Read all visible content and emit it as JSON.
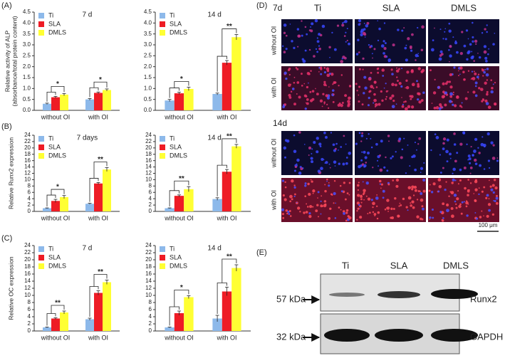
{
  "panel_labels": [
    "(A)",
    "(B)",
    "(C)",
    "(D)",
    "(E)"
  ],
  "chart_data": [
    {
      "type": "bar",
      "title": "7 d",
      "y_label": [
        "Relative activity of ALP",
        "(absorbance/total protein content)"
      ],
      "categories": [
        "without OI",
        "with OI"
      ],
      "series": [
        {
          "name": "Ti",
          "color": "#8db9ea",
          "values": [
            0.3,
            0.5
          ],
          "errors": [
            0.03,
            0.04
          ]
        },
        {
          "name": "SLA",
          "color": "#ee1c25",
          "values": [
            0.6,
            0.8
          ],
          "errors": [
            0.04,
            0.04
          ]
        },
        {
          "name": "DMLS",
          "color": "#ffff33",
          "values": [
            0.72,
            0.93
          ],
          "errors": [
            0.05,
            0.05
          ]
        }
      ],
      "significance": [
        "*",
        "*"
      ],
      "ylim": [
        0,
        4.5
      ],
      "yticks": [
        {
          "value": 0,
          "label": "0.0"
        },
        0.5,
        {
          "value": 1,
          "label": "1.0"
        },
        1.5,
        {
          "value": 2,
          "label": "2.0"
        },
        2.5,
        {
          "value": 3,
          "label": "3.0"
        },
        3.5,
        {
          "value": 4,
          "label": "4.0"
        },
        4.5
      ]
    },
    {
      "type": "bar",
      "title": "14 d",
      "categories": [
        "without OI",
        "with OI"
      ],
      "series": [
        {
          "name": "Ti",
          "color": "#8db9ea",
          "values": [
            0.45,
            0.75
          ],
          "errors": [
            0.05,
            0.04
          ]
        },
        {
          "name": "SLA",
          "color": "#ee1c25",
          "values": [
            0.78,
            2.18
          ],
          "errors": [
            0.05,
            0.1
          ]
        },
        {
          "name": "DMLS",
          "color": "#ffff33",
          "values": [
            0.98,
            3.35
          ],
          "errors": [
            0.08,
            0.12
          ]
        }
      ],
      "significance": [
        "*",
        "**"
      ],
      "ylim": [
        0,
        4.5
      ],
      "yticks": [
        {
          "value": 0,
          "label": "0.0"
        },
        0.5,
        {
          "value": 1,
          "label": "1.0"
        },
        1.5,
        {
          "value": 2,
          "label": "2.0"
        },
        2.5,
        {
          "value": 3,
          "label": "3.0"
        },
        3.5,
        {
          "value": 4,
          "label": "4.0"
        },
        4.5
      ]
    },
    {
      "type": "bar",
      "title": "7 days",
      "y_label": [
        "Relative Runx2 expression"
      ],
      "categories": [
        "without OI",
        "with OI"
      ],
      "series": [
        {
          "name": "Ti",
          "color": "#8db9ea",
          "values": [
            1,
            2.4
          ],
          "errors": [
            0.1,
            0.15
          ]
        },
        {
          "name": "SLA",
          "color": "#ee1c25",
          "values": [
            3.3,
            8.8
          ],
          "errors": [
            0.5,
            0.3
          ]
        },
        {
          "name": "DMLS",
          "color": "#ffff33",
          "values": [
            4.5,
            13.2
          ],
          "errors": [
            0.5,
            0.6
          ]
        }
      ],
      "significance": [
        "*",
        "**"
      ],
      "ylim": [
        0,
        24
      ],
      "yticks": [
        0,
        2,
        4,
        6,
        8,
        10,
        12,
        14,
        16,
        18,
        20,
        22,
        24
      ]
    },
    {
      "type": "bar",
      "title": "14 d",
      "categories": [
        "without OI",
        "with OI"
      ],
      "series": [
        {
          "name": "Ti",
          "color": "#8db9ea",
          "values": [
            1,
            3.9
          ],
          "errors": [
            0.1,
            0.4
          ]
        },
        {
          "name": "SLA",
          "color": "#ee1c25",
          "values": [
            4.9,
            12.5
          ],
          "errors": [
            0.3,
            0.7
          ]
        },
        {
          "name": "DMLS",
          "color": "#ffff33",
          "values": [
            7,
            20.5
          ],
          "errors": [
            0.8,
            0.6
          ]
        }
      ],
      "significance": [
        "**",
        "**"
      ],
      "ylim": [
        0,
        24
      ],
      "yticks": [
        0,
        2,
        4,
        6,
        8,
        10,
        12,
        14,
        16,
        18,
        20,
        22,
        24
      ]
    },
    {
      "type": "bar",
      "title": "7 d",
      "y_label": [
        "Relative OC expression"
      ],
      "categories": [
        "without OI",
        "with OI"
      ],
      "series": [
        {
          "name": "Ti",
          "color": "#8db9ea",
          "values": [
            1,
            3.3
          ],
          "errors": [
            0.1,
            0.3
          ]
        },
        {
          "name": "SLA",
          "color": "#ee1c25",
          "values": [
            3.5,
            10.7
          ],
          "errors": [
            0.2,
            0.6
          ]
        },
        {
          "name": "DMLS",
          "color": "#ffff33",
          "values": [
            5.2,
            13.7
          ],
          "errors": [
            0.4,
            0.6
          ]
        }
      ],
      "significance": [
        "**",
        "**"
      ],
      "ylim": [
        0,
        24
      ],
      "yticks": [
        0,
        2,
        4,
        6,
        8,
        10,
        12,
        14,
        16,
        18,
        20,
        22,
        24
      ]
    },
    {
      "type": "bar",
      "title": "14 d",
      "categories": [
        "without OI",
        "with OI"
      ],
      "series": [
        {
          "name": "Ti",
          "color": "#8db9ea",
          "values": [
            1,
            3.5
          ],
          "errors": [
            0.1,
            0.9
          ]
        },
        {
          "name": "SLA",
          "color": "#ee1c25",
          "values": [
            5,
            11.1
          ],
          "errors": [
            0.6,
            1.2
          ]
        },
        {
          "name": "DMLS",
          "color": "#ffff33",
          "values": [
            9.5,
            17.7
          ],
          "errors": [
            0.4,
            0.9
          ]
        }
      ],
      "significance": [
        "*",
        "**"
      ],
      "ylim": [
        0,
        24
      ],
      "yticks": [
        0,
        2,
        4,
        6,
        8,
        10,
        12,
        14,
        16,
        18,
        20,
        22,
        24
      ]
    }
  ],
  "microscopy": {
    "time_points": [
      "7d",
      "14d"
    ],
    "columns": [
      "Ti",
      "SLA",
      "DMLS"
    ],
    "rows": [
      "without OI",
      "with OI"
    ],
    "scale_bar": "100 μm"
  },
  "western_blot": {
    "lanes": [
      "Ti",
      "SLA",
      "DMLS"
    ],
    "markers": [
      "57 kDa",
      "32 kDa"
    ],
    "proteins": [
      "Runx2",
      "GAPDH"
    ]
  }
}
